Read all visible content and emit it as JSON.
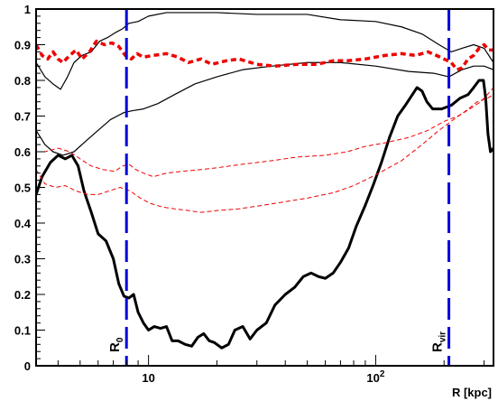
{
  "chart_data": {
    "type": "line",
    "title": "",
    "xlabel": "R [kpc]",
    "ylabel": "",
    "xscale": "log",
    "xlim": [
      3.2,
      330
    ],
    "ylim": [
      0,
      1
    ],
    "grid": false,
    "x_ticks": [
      {
        "value": 10,
        "label": "10"
      },
      {
        "value": 100,
        "label": "10",
        "sup": "2"
      }
    ],
    "y_ticks": [
      {
        "value": 0,
        "label": "0"
      },
      {
        "value": 0.1,
        "label": "0.1"
      },
      {
        "value": 0.2,
        "label": "0.2"
      },
      {
        "value": 0.3,
        "label": "0.3"
      },
      {
        "value": 0.4,
        "label": "0.4"
      },
      {
        "value": 0.5,
        "label": "0.5"
      },
      {
        "value": 0.6,
        "label": "0.6"
      },
      {
        "value": 0.7,
        "label": "0.7"
      },
      {
        "value": 0.8,
        "label": "0.8"
      },
      {
        "value": 0.9,
        "label": "0.9"
      },
      {
        "value": 1.0,
        "label": "1"
      }
    ],
    "markers": [
      {
        "x": 8,
        "label": "R",
        "sub": "0",
        "color": "#0000dd"
      },
      {
        "x": 210,
        "label": "R",
        "sub": "vir",
        "color": "#0000dd"
      }
    ],
    "series": [
      {
        "color": "#000000",
        "style": "solid",
        "width": 3,
        "points": [
          [
            3.2,
            0.48
          ],
          [
            3.4,
            0.53
          ],
          [
            3.7,
            0.57
          ],
          [
            4.0,
            0.59
          ],
          [
            4.3,
            0.58
          ],
          [
            4.6,
            0.59
          ],
          [
            4.9,
            0.56
          ],
          [
            5.2,
            0.49
          ],
          [
            5.6,
            0.43
          ],
          [
            6.0,
            0.37
          ],
          [
            6.5,
            0.35
          ],
          [
            7.0,
            0.3
          ],
          [
            7.4,
            0.23
          ],
          [
            7.8,
            0.195
          ],
          [
            8.2,
            0.19
          ],
          [
            8.6,
            0.2
          ],
          [
            9.0,
            0.15
          ],
          [
            9.5,
            0.12
          ],
          [
            10.0,
            0.1
          ],
          [
            10.6,
            0.11
          ],
          [
            11.3,
            0.105
          ],
          [
            12.0,
            0.11
          ],
          [
            12.7,
            0.07
          ],
          [
            13.5,
            0.07
          ],
          [
            14.5,
            0.06
          ],
          [
            15.5,
            0.055
          ],
          [
            16.5,
            0.08
          ],
          [
            17.5,
            0.09
          ],
          [
            18.5,
            0.07
          ],
          [
            19.5,
            0.065
          ],
          [
            21.0,
            0.05
          ],
          [
            22.5,
            0.06
          ],
          [
            24.0,
            0.1
          ],
          [
            26.0,
            0.11
          ],
          [
            28.0,
            0.075
          ],
          [
            30.0,
            0.1
          ],
          [
            33.0,
            0.12
          ],
          [
            36.0,
            0.17
          ],
          [
            40.0,
            0.2
          ],
          [
            44.0,
            0.22
          ],
          [
            48.0,
            0.25
          ],
          [
            52.0,
            0.26
          ],
          [
            56.0,
            0.25
          ],
          [
            60.0,
            0.245
          ],
          [
            65.0,
            0.26
          ],
          [
            70.0,
            0.29
          ],
          [
            76.0,
            0.33
          ],
          [
            82.0,
            0.39
          ],
          [
            90.0,
            0.45
          ],
          [
            98.0,
            0.51
          ],
          [
            106.0,
            0.57
          ],
          [
            115.0,
            0.64
          ],
          [
            125.0,
            0.7
          ],
          [
            135.0,
            0.73
          ],
          [
            145.0,
            0.76
          ],
          [
            152.0,
            0.78
          ],
          [
            160.0,
            0.77
          ],
          [
            168.0,
            0.74
          ],
          [
            178.0,
            0.72
          ],
          [
            195.0,
            0.72
          ],
          [
            215.0,
            0.73
          ],
          [
            235.0,
            0.75
          ],
          [
            255.0,
            0.76
          ],
          [
            270.0,
            0.78
          ],
          [
            285.0,
            0.8
          ],
          [
            298.0,
            0.8
          ],
          [
            305.0,
            0.75
          ],
          [
            312.0,
            0.65
          ],
          [
            320.0,
            0.6
          ],
          [
            330.0,
            0.61
          ]
        ]
      },
      {
        "color": "#000000",
        "style": "solid",
        "width": 1.2,
        "points": [
          [
            3.2,
            0.85
          ],
          [
            3.5,
            0.81
          ],
          [
            3.8,
            0.79
          ],
          [
            4.1,
            0.775
          ],
          [
            4.4,
            0.81
          ],
          [
            4.7,
            0.85
          ],
          [
            5.1,
            0.87
          ],
          [
            5.6,
            0.88
          ],
          [
            6.1,
            0.91
          ],
          [
            6.6,
            0.92
          ],
          [
            7.2,
            0.935
          ],
          [
            7.7,
            0.945
          ],
          [
            8.2,
            0.96
          ],
          [
            9.0,
            0.965
          ],
          [
            10.0,
            0.98
          ],
          [
            12.0,
            0.99
          ],
          [
            15.0,
            0.99
          ],
          [
            20.0,
            0.99
          ],
          [
            30.0,
            0.985
          ],
          [
            50.0,
            0.985
          ],
          [
            70.0,
            0.97
          ],
          [
            100.0,
            0.965
          ],
          [
            130.0,
            0.95
          ],
          [
            160.0,
            0.93
          ],
          [
            190.0,
            0.9
          ],
          [
            215.0,
            0.88
          ],
          [
            240.0,
            0.89
          ],
          [
            270.0,
            0.9
          ],
          [
            300.0,
            0.89
          ],
          [
            330.0,
            0.85
          ]
        ]
      },
      {
        "color": "#000000",
        "style": "solid",
        "width": 1.2,
        "points": [
          [
            3.2,
            0.66
          ],
          [
            3.5,
            0.62
          ],
          [
            3.8,
            0.6
          ],
          [
            4.2,
            0.59
          ],
          [
            4.7,
            0.6
          ],
          [
            5.3,
            0.63
          ],
          [
            6.0,
            0.66
          ],
          [
            6.8,
            0.69
          ],
          [
            7.8,
            0.71
          ],
          [
            8.5,
            0.715
          ],
          [
            9.5,
            0.72
          ],
          [
            11.0,
            0.735
          ],
          [
            13.0,
            0.76
          ],
          [
            16.0,
            0.79
          ],
          [
            20.0,
            0.81
          ],
          [
            26.0,
            0.83
          ],
          [
            35.0,
            0.84
          ],
          [
            50.0,
            0.85
          ],
          [
            70.0,
            0.85
          ],
          [
            100.0,
            0.84
          ],
          [
            140.0,
            0.825
          ],
          [
            180.0,
            0.82
          ],
          [
            210.0,
            0.81
          ],
          [
            240.0,
            0.83
          ],
          [
            270.0,
            0.84
          ],
          [
            300.0,
            0.84
          ],
          [
            330.0,
            0.83
          ]
        ]
      },
      {
        "color": "#ee0000",
        "style": "dotted",
        "width": 3.5,
        "points": [
          [
            3.2,
            0.9
          ],
          [
            3.4,
            0.87
          ],
          [
            3.6,
            0.86
          ],
          [
            3.8,
            0.88
          ],
          [
            4.0,
            0.86
          ],
          [
            4.2,
            0.85
          ],
          [
            4.5,
            0.87
          ],
          [
            4.8,
            0.885
          ],
          [
            5.1,
            0.86
          ],
          [
            5.5,
            0.88
          ],
          [
            5.9,
            0.91
          ],
          [
            6.4,
            0.9
          ],
          [
            6.9,
            0.905
          ],
          [
            7.4,
            0.895
          ],
          [
            7.9,
            0.87
          ],
          [
            8.4,
            0.86
          ],
          [
            8.9,
            0.875
          ],
          [
            9.5,
            0.865
          ],
          [
            10.5,
            0.87
          ],
          [
            12.0,
            0.875
          ],
          [
            13.5,
            0.865
          ],
          [
            15.0,
            0.85
          ],
          [
            17.0,
            0.86
          ],
          [
            19.0,
            0.845
          ],
          [
            22.0,
            0.855
          ],
          [
            25.0,
            0.86
          ],
          [
            30.0,
            0.845
          ],
          [
            36.0,
            0.84
          ],
          [
            45.0,
            0.845
          ],
          [
            55.0,
            0.845
          ],
          [
            65.0,
            0.855
          ],
          [
            75.0,
            0.855
          ],
          [
            90.0,
            0.86
          ],
          [
            110.0,
            0.87
          ],
          [
            130.0,
            0.875
          ],
          [
            150.0,
            0.87
          ],
          [
            170.0,
            0.88
          ],
          [
            185.0,
            0.87
          ],
          [
            200.0,
            0.86
          ],
          [
            215.0,
            0.85
          ],
          [
            228.0,
            0.83
          ],
          [
            240.0,
            0.835
          ],
          [
            255.0,
            0.86
          ],
          [
            270.0,
            0.87
          ],
          [
            285.0,
            0.89
          ],
          [
            300.0,
            0.9
          ],
          [
            315.0,
            0.885
          ],
          [
            330.0,
            0.885
          ]
        ]
      },
      {
        "color": "#ee0000",
        "style": "dashed",
        "width": 1,
        "points": [
          [
            3.2,
            0.6
          ],
          [
            3.5,
            0.6
          ],
          [
            4.0,
            0.61
          ],
          [
            4.5,
            0.6
          ],
          [
            5.0,
            0.58
          ],
          [
            5.6,
            0.56
          ],
          [
            6.3,
            0.55
          ],
          [
            7.1,
            0.545
          ],
          [
            7.7,
            0.56
          ],
          [
            8.2,
            0.565
          ],
          [
            8.8,
            0.55
          ],
          [
            9.5,
            0.54
          ],
          [
            10.5,
            0.53
          ],
          [
            12.0,
            0.54
          ],
          [
            14.0,
            0.545
          ],
          [
            17.0,
            0.55
          ],
          [
            20.0,
            0.555
          ],
          [
            26.0,
            0.565
          ],
          [
            35.0,
            0.575
          ],
          [
            45.0,
            0.585
          ],
          [
            60.0,
            0.59
          ],
          [
            75.0,
            0.6
          ],
          [
            90.0,
            0.615
          ],
          [
            110.0,
            0.625
          ],
          [
            140.0,
            0.64
          ],
          [
            170.0,
            0.66
          ],
          [
            200.0,
            0.685
          ],
          [
            230.0,
            0.7
          ],
          [
            260.0,
            0.72
          ],
          [
            290.0,
            0.74
          ],
          [
            310.0,
            0.76
          ],
          [
            330.0,
            0.78
          ]
        ]
      },
      {
        "color": "#ee0000",
        "style": "dashed",
        "width": 1,
        "points": [
          [
            3.2,
            0.55
          ],
          [
            3.5,
            0.51
          ],
          [
            3.9,
            0.5
          ],
          [
            4.3,
            0.505
          ],
          [
            4.8,
            0.49
          ],
          [
            5.4,
            0.48
          ],
          [
            6.0,
            0.48
          ],
          [
            6.7,
            0.49
          ],
          [
            7.5,
            0.5
          ],
          [
            8.3,
            0.49
          ],
          [
            9.2,
            0.47
          ],
          [
            10.2,
            0.455
          ],
          [
            11.5,
            0.445
          ],
          [
            13.0,
            0.44
          ],
          [
            15.0,
            0.435
          ],
          [
            17.0,
            0.43
          ],
          [
            20.0,
            0.435
          ],
          [
            25.0,
            0.44
          ],
          [
            32.0,
            0.45
          ],
          [
            40.0,
            0.46
          ],
          [
            50.0,
            0.47
          ],
          [
            65.0,
            0.485
          ],
          [
            80.0,
            0.505
          ],
          [
            100.0,
            0.535
          ],
          [
            130.0,
            0.575
          ],
          [
            160.0,
            0.62
          ],
          [
            190.0,
            0.66
          ],
          [
            220.0,
            0.69
          ],
          [
            250.0,
            0.715
          ],
          [
            280.0,
            0.74
          ],
          [
            310.0,
            0.75
          ],
          [
            330.0,
            0.76
          ]
        ]
      }
    ]
  }
}
